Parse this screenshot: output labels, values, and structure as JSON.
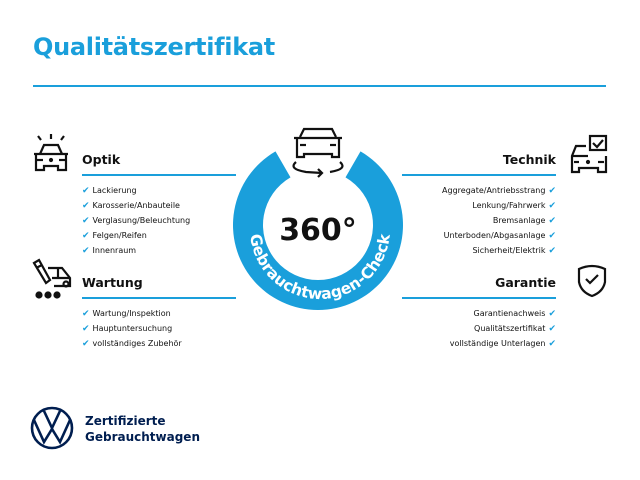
{
  "title": "Qualitätszertifikat",
  "colors": {
    "accent": "#1a9fdb",
    "brand_navy": "#001e50"
  },
  "badge": {
    "value": "360°",
    "ring_text": "Gebrauchtwagen-Check",
    "icon": "car-rotate-icon"
  },
  "sections": {
    "optik": {
      "title": "Optik",
      "icon": "car-lights-icon",
      "items": [
        "Lackierung",
        "Karosserie/Anbauteile",
        "Verglasung/Beleuchtung",
        "Felgen/Reifen",
        "Innenraum"
      ]
    },
    "wartung": {
      "title": "Wartung",
      "icon": "car-service-icon",
      "items": [
        "Wartung/Inspektion",
        "Hauptuntersuchung",
        "vollständiges Zubehör"
      ]
    },
    "technik": {
      "title": "Technik",
      "icon": "car-checkbox-icon",
      "items": [
        "Aggregate/Antriebsstrang",
        "Lenkung/Fahrwerk",
        "Bremsanlage",
        "Unterboden/Abgasanlage",
        "Sicherheit/Elektrik"
      ]
    },
    "garantie": {
      "title": "Garantie",
      "icon": "shield-check-icon",
      "items": [
        "Garantienachweis",
        "Qualitätszertifikat",
        "vollständige Unterlagen"
      ]
    }
  },
  "check_glyph": "✔",
  "footer": {
    "line1": "Zertifizierte",
    "line2": "Gebrauchtwagen",
    "logo": "VW"
  }
}
